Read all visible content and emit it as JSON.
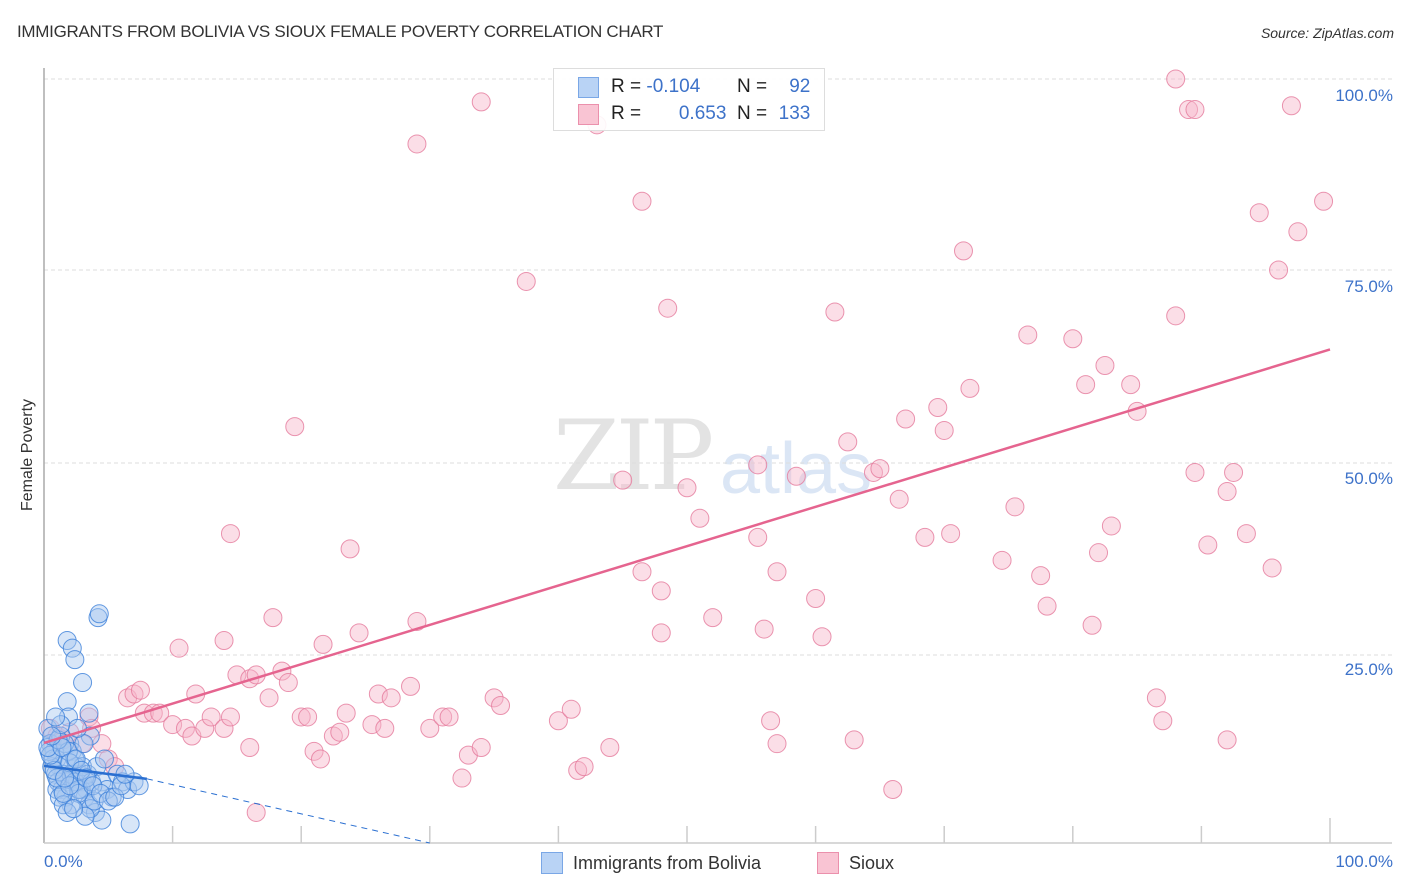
{
  "header": {
    "title": "IMMIGRANTS FROM BOLIVIA VS SIOUX FEMALE POVERTY CORRELATION CHART",
    "source": "Source: ZipAtlas.com"
  },
  "watermark": {
    "zip": "ZIP",
    "atlas": "atlas"
  },
  "axes": {
    "ylabel": "Female Poverty",
    "y_ticks": [
      "100.0%",
      "75.0%",
      "50.0%",
      "25.0%"
    ],
    "x_tick_left": "0.0%",
    "x_tick_right": "100.0%"
  },
  "legend": {
    "rows": [
      {
        "r_label": "R =",
        "r_value": "-0.104",
        "n_label": "N =",
        "n_value": "92",
        "color": "#a9c8f0"
      },
      {
        "r_label": "R =",
        "r_value": "0.653",
        "n_label": "N =",
        "n_value": "133",
        "color": "#f7b6c9"
      }
    ]
  },
  "bottom_legend": {
    "items": [
      {
        "label": "Immigrants from Bolivia",
        "color": "#a9c8f0"
      },
      {
        "label": "Sioux",
        "color": "#f7b6c9"
      }
    ]
  },
  "colors": {
    "blue_fill": "#a9c8f0",
    "blue_stroke": "#3b7fd9",
    "pink_fill": "#f7b6c9",
    "pink_stroke": "#e57a9c",
    "pink_line": "#e5648f",
    "blue_line": "#2a6fd1",
    "tick_label": "#3d72c9"
  },
  "chart_data": {
    "type": "scatter",
    "title": "IMMIGRANTS FROM BOLIVIA VS SIOUX FEMALE POVERTY CORRELATION CHART",
    "xlabel": "",
    "ylabel": "Female Poverty",
    "xlim": [
      0,
      100
    ],
    "ylim": [
      0,
      100
    ],
    "x_tick_labels": [
      "0.0%",
      "100.0%"
    ],
    "y_tick_labels": [
      "25.0%",
      "50.0%",
      "75.0%",
      "100.0%"
    ],
    "grid": true,
    "legend_position": "top-center",
    "series": [
      {
        "name": "Immigrants from Bolivia",
        "R": -0.104,
        "N": 92,
        "trendline": {
          "x": [
            0,
            8
          ],
          "y": [
            10.1,
            8.4
          ],
          "dashed_extension_to": [
            30,
            0
          ]
        },
        "points": [
          [
            0.3,
            15
          ],
          [
            0.5,
            13
          ],
          [
            0.8,
            12
          ],
          [
            1.0,
            11
          ],
          [
            1.2,
            10
          ],
          [
            1.5,
            9
          ],
          [
            1.8,
            8
          ],
          [
            2.0,
            13
          ],
          [
            2.2,
            12
          ],
          [
            2.4,
            11
          ],
          [
            0.6,
            10
          ],
          [
            0.9,
            9
          ],
          [
            1.1,
            8
          ],
          [
            1.4,
            7
          ],
          [
            1.7,
            6
          ],
          [
            2.1,
            5
          ],
          [
            2.5,
            10
          ],
          [
            2.8,
            9
          ],
          [
            3.0,
            8
          ],
          [
            3.3,
            7
          ],
          [
            0.4,
            12
          ],
          [
            0.7,
            11
          ],
          [
            1.3,
            14
          ],
          [
            1.6,
            13
          ],
          [
            1.9,
            12
          ],
          [
            2.3,
            9
          ],
          [
            2.6,
            8
          ],
          [
            2.9,
            7
          ],
          [
            3.2,
            6
          ],
          [
            3.5,
            5
          ],
          [
            1.0,
            7
          ],
          [
            1.2,
            6
          ],
          [
            1.5,
            5
          ],
          [
            1.8,
            4
          ],
          [
            2.1,
            9
          ],
          [
            2.4,
            8
          ],
          [
            2.7,
            7
          ],
          [
            3.0,
            10
          ],
          [
            3.4,
            9
          ],
          [
            3.7,
            8
          ],
          [
            1.8,
            26.5
          ],
          [
            2.2,
            25.5
          ],
          [
            2.4,
            24
          ],
          [
            4.2,
            29.5
          ],
          [
            4.3,
            30
          ],
          [
            3.0,
            21
          ],
          [
            1.8,
            18.5
          ],
          [
            1.9,
            16.5
          ],
          [
            3.5,
            17
          ],
          [
            3.6,
            14
          ],
          [
            4.1,
            10
          ],
          [
            4.5,
            8
          ],
          [
            4.9,
            7
          ],
          [
            5.3,
            6
          ],
          [
            5.7,
            9
          ],
          [
            6.1,
            8
          ],
          [
            6.5,
            7
          ],
          [
            7.0,
            8
          ],
          [
            7.4,
            7.5
          ],
          [
            6.7,
            2.5
          ],
          [
            4.0,
            4
          ],
          [
            4.5,
            3
          ],
          [
            3.6,
            4.5
          ],
          [
            3.9,
            5.5
          ],
          [
            3.2,
            3.5
          ],
          [
            2.7,
            6.5
          ],
          [
            2.3,
            4.5
          ],
          [
            1.5,
            6.5
          ],
          [
            1.0,
            8.5
          ],
          [
            0.8,
            9.5
          ],
          [
            0.5,
            11.5
          ],
          [
            0.3,
            12.5
          ],
          [
            1.1,
            13.5
          ],
          [
            1.4,
            12.5
          ],
          [
            2.0,
            10.5
          ],
          [
            2.5,
            11
          ],
          [
            2.9,
            9.5
          ],
          [
            3.3,
            8.5
          ],
          [
            3.8,
            7.5
          ],
          [
            4.4,
            6.5
          ],
          [
            5.0,
            5.5
          ],
          [
            5.5,
            6
          ],
          [
            6.0,
            7.5
          ],
          [
            6.3,
            9
          ],
          [
            3.1,
            13
          ],
          [
            2.6,
            15
          ],
          [
            1.3,
            15.5
          ],
          [
            0.9,
            16.5
          ],
          [
            0.6,
            14
          ],
          [
            2.0,
            7.5
          ],
          [
            1.6,
            8.5
          ],
          [
            4.7,
            11
          ]
        ]
      },
      {
        "name": "Sioux",
        "R": 0.653,
        "N": 133,
        "trendline": {
          "x": [
            0,
            100
          ],
          "y": [
            13.1,
            64.6
          ]
        },
        "points": [
          [
            0.5,
            15
          ],
          [
            1.0,
            14
          ],
          [
            1.5,
            13.5
          ],
          [
            2.0,
            14.5
          ],
          [
            3.0,
            13
          ],
          [
            3.5,
            16.5
          ],
          [
            3.7,
            15
          ],
          [
            4.5,
            13
          ],
          [
            5.0,
            11
          ],
          [
            5.5,
            10
          ],
          [
            6.5,
            19
          ],
          [
            7.0,
            19.5
          ],
          [
            7.5,
            20
          ],
          [
            7.8,
            17
          ],
          [
            8.5,
            17
          ],
          [
            9.0,
            17
          ],
          [
            10.0,
            15.5
          ],
          [
            10.5,
            25.5
          ],
          [
            11.0,
            15
          ],
          [
            11.5,
            14
          ],
          [
            11.8,
            19.5
          ],
          [
            12.5,
            15
          ],
          [
            13.0,
            16.5
          ],
          [
            14.0,
            15
          ],
          [
            14.5,
            16.5
          ],
          [
            14.0,
            26.5
          ],
          [
            15.0,
            22
          ],
          [
            16.0,
            21.5
          ],
          [
            16.5,
            22
          ],
          [
            14.5,
            40.5
          ],
          [
            16.0,
            12.5
          ],
          [
            16.5,
            4
          ],
          [
            17.5,
            19
          ],
          [
            17.8,
            29.5
          ],
          [
            18.5,
            22.5
          ],
          [
            19.0,
            21
          ],
          [
            19.5,
            54.5
          ],
          [
            20.0,
            16.5
          ],
          [
            20.5,
            16.5
          ],
          [
            21.0,
            12
          ],
          [
            21.5,
            11
          ],
          [
            21.7,
            26
          ],
          [
            22.5,
            14
          ],
          [
            23.0,
            14.5
          ],
          [
            23.5,
            17
          ],
          [
            23.8,
            38.5
          ],
          [
            24.5,
            27.5
          ],
          [
            25.5,
            15.5
          ],
          [
            26.0,
            19.5
          ],
          [
            26.5,
            15
          ],
          [
            27.0,
            19
          ],
          [
            28.5,
            20.5
          ],
          [
            29.0,
            29
          ],
          [
            30.0,
            15
          ],
          [
            31.0,
            16.5
          ],
          [
            31.5,
            16.5
          ],
          [
            32.5,
            8.5
          ],
          [
            33.0,
            11.5
          ],
          [
            34.0,
            12.5
          ],
          [
            35.0,
            19
          ],
          [
            35.5,
            18
          ],
          [
            34.0,
            97
          ],
          [
            29.0,
            91.5
          ],
          [
            37.5,
            73.5
          ],
          [
            40.0,
            16
          ],
          [
            41.0,
            17.5
          ],
          [
            41.5,
            9.5
          ],
          [
            42.0,
            10
          ],
          [
            44.0,
            12.5
          ],
          [
            43.0,
            94
          ],
          [
            45.0,
            47.5
          ],
          [
            46.5,
            35.5
          ],
          [
            46.5,
            84
          ],
          [
            48.0,
            33
          ],
          [
            48.5,
            70
          ],
          [
            48.0,
            27.5
          ],
          [
            50.0,
            46.5
          ],
          [
            51.0,
            42.5
          ],
          [
            52.0,
            29.5
          ],
          [
            55.5,
            49.5
          ],
          [
            55.5,
            40
          ],
          [
            56.0,
            28
          ],
          [
            56.5,
            16
          ],
          [
            57.0,
            13
          ],
          [
            57.0,
            35.5
          ],
          [
            58.5,
            48
          ],
          [
            60.0,
            32
          ],
          [
            60.5,
            27
          ],
          [
            61.5,
            69.5
          ],
          [
            63.0,
            13.5
          ],
          [
            62.5,
            52.5
          ],
          [
            64.5,
            48.5
          ],
          [
            65.0,
            49
          ],
          [
            66.5,
            45
          ],
          [
            66.0,
            7
          ],
          [
            67.0,
            55.5
          ],
          [
            68.5,
            40
          ],
          [
            69.5,
            57
          ],
          [
            70.0,
            54
          ],
          [
            70.5,
            40.5
          ],
          [
            71.5,
            77.5
          ],
          [
            72.0,
            59.5
          ],
          [
            74.5,
            37
          ],
          [
            75.5,
            44
          ],
          [
            76.5,
            66.5
          ],
          [
            77.5,
            35
          ],
          [
            78.0,
            31
          ],
          [
            80.0,
            66
          ],
          [
            81.0,
            60
          ],
          [
            81.5,
            28.5
          ],
          [
            82.0,
            38
          ],
          [
            82.5,
            62.5
          ],
          [
            83.0,
            41.5
          ],
          [
            84.5,
            60
          ],
          [
            85.0,
            56.5
          ],
          [
            87.0,
            16
          ],
          [
            88.0,
            69
          ],
          [
            88.0,
            100
          ],
          [
            89.0,
            96
          ],
          [
            89.5,
            96
          ],
          [
            89.5,
            48.5
          ],
          [
            90.5,
            39
          ],
          [
            92.0,
            46
          ],
          [
            92.5,
            48.5
          ],
          [
            93.5,
            40.5
          ],
          [
            94.5,
            82.5
          ],
          [
            95.5,
            36
          ],
          [
            96.0,
            75
          ],
          [
            97.0,
            96.5
          ],
          [
            97.5,
            80
          ],
          [
            99.5,
            84
          ],
          [
            86.5,
            19
          ],
          [
            92.0,
            13.5
          ]
        ]
      }
    ]
  }
}
